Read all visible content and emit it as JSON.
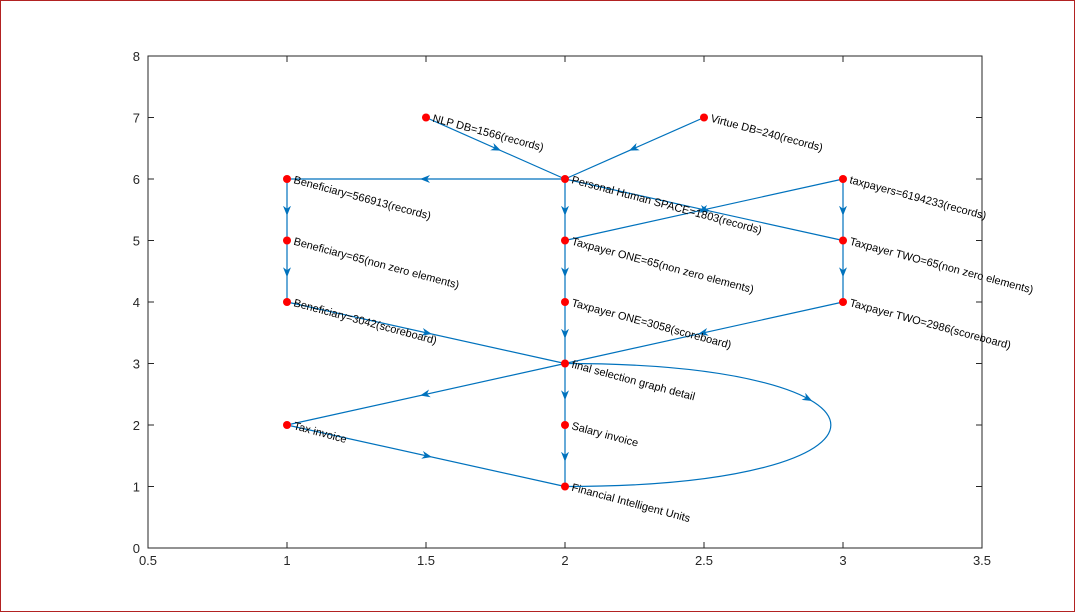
{
  "chart_data": {
    "type": "diagram",
    "xlim": [
      0.5,
      3.5
    ],
    "ylim": [
      0,
      8
    ],
    "xticks": [
      0.5,
      1,
      1.5,
      2,
      2.5,
      3,
      3.5
    ],
    "yticks": [
      0,
      1,
      2,
      3,
      4,
      5,
      6,
      7,
      8
    ],
    "xtick_labels": [
      "0.5",
      "1",
      "1.5",
      "2",
      "2.5",
      "3",
      "3.5"
    ],
    "ytick_labels": [
      "0",
      "1",
      "2",
      "3",
      "4",
      "5",
      "6",
      "7",
      "8"
    ],
    "edge_color": "#0072BD",
    "node_color": "#FF0000",
    "nodes": [
      {
        "id": "nlp",
        "x": 1.5,
        "y": 7,
        "label": "NLP DB=1566(records)"
      },
      {
        "id": "virtue",
        "x": 2.5,
        "y": 7,
        "label": "Virtue DB=240(records)"
      },
      {
        "id": "ben1",
        "x": 1,
        "y": 6,
        "label": "Beneficiary=566913(records)"
      },
      {
        "id": "phs",
        "x": 2,
        "y": 6,
        "label": "Personal Human SPACE=1803(records)"
      },
      {
        "id": "tax",
        "x": 3,
        "y": 6,
        "label": "taxpayers=6194233(records)"
      },
      {
        "id": "ben2",
        "x": 1,
        "y": 5,
        "label": "Beneficiary=65(non zero elements)"
      },
      {
        "id": "tp1a",
        "x": 2,
        "y": 5,
        "label": "Taxpayer ONE=65(non zero elements)"
      },
      {
        "id": "tp2a",
        "x": 3,
        "y": 5,
        "label": "Taxpayer TWO=65(non zero elements)"
      },
      {
        "id": "ben3",
        "x": 1,
        "y": 4,
        "label": "Beneficiary=3042(scoreboard)"
      },
      {
        "id": "tp1b",
        "x": 2,
        "y": 4,
        "label": "Taxpayer ONE=3058(scoreboard)"
      },
      {
        "id": "tp2b",
        "x": 3,
        "y": 4,
        "label": "Taxpayer TWO=2986(scoreboard)"
      },
      {
        "id": "final",
        "x": 2,
        "y": 3,
        "label": "final selection graph detail"
      },
      {
        "id": "taxinv",
        "x": 1,
        "y": 2,
        "label": "Tax invoice"
      },
      {
        "id": "salary",
        "x": 2,
        "y": 2,
        "label": "Salary invoice"
      },
      {
        "id": "fiu",
        "x": 2,
        "y": 1,
        "label": "Financial Intelligent Units"
      }
    ],
    "edges": [
      {
        "from": "nlp",
        "to": "phs"
      },
      {
        "from": "virtue",
        "to": "phs"
      },
      {
        "from": "phs",
        "to": "ben1"
      },
      {
        "from": "phs",
        "to": "tp1a"
      },
      {
        "from": "phs",
        "to": "tp2a"
      },
      {
        "from": "tax",
        "to": "tp1a"
      },
      {
        "from": "tax",
        "to": "tp2a"
      },
      {
        "from": "ben1",
        "to": "ben2"
      },
      {
        "from": "ben2",
        "to": "ben3"
      },
      {
        "from": "tp1a",
        "to": "tp1b"
      },
      {
        "from": "tp2a",
        "to": "tp2b"
      },
      {
        "from": "ben3",
        "to": "final"
      },
      {
        "from": "tp1b",
        "to": "final"
      },
      {
        "from": "tp2b",
        "to": "final"
      },
      {
        "from": "final",
        "to": "taxinv"
      },
      {
        "from": "final",
        "to": "salary"
      },
      {
        "from": "salary",
        "to": "fiu"
      },
      {
        "from": "taxinv",
        "to": "fiu"
      },
      {
        "from": "final",
        "to": "fiu",
        "curved": true
      }
    ]
  }
}
